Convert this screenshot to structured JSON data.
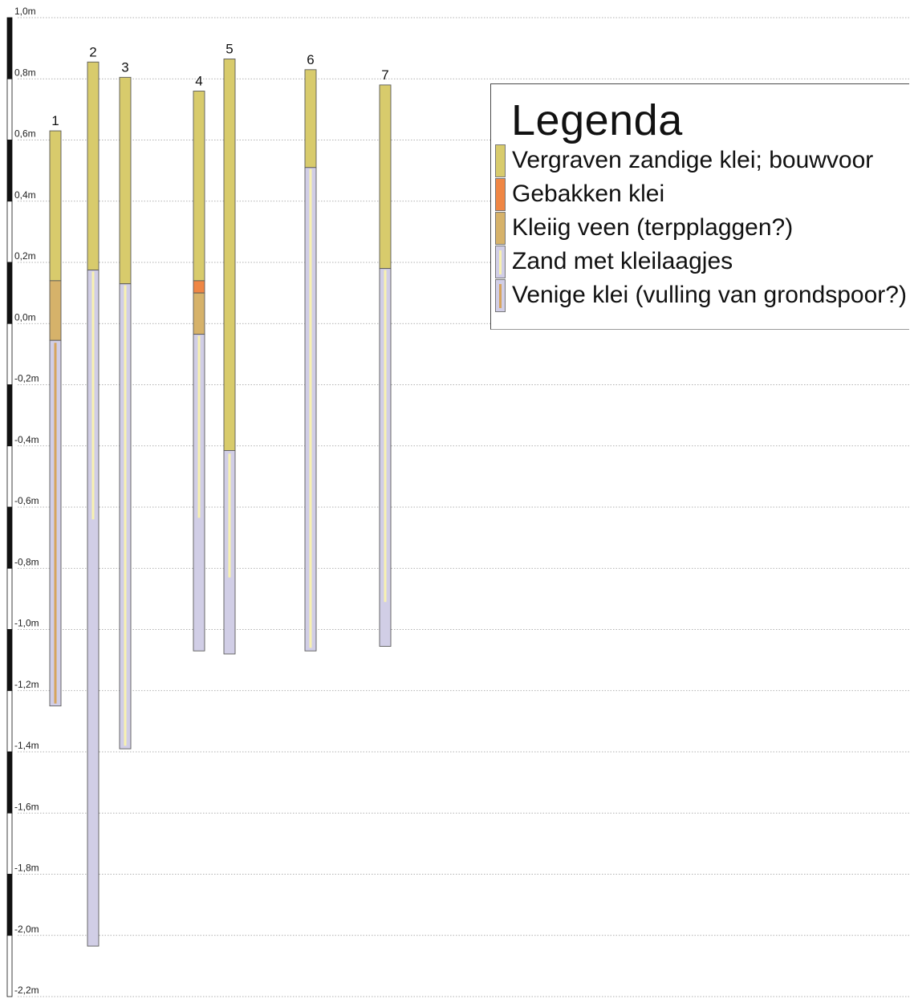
{
  "scale": {
    "top": 1.0,
    "bottom": -2.2,
    "ticks": [
      {
        "value": 1.0,
        "label": "1,0m"
      },
      {
        "value": 0.8,
        "label": "0,8m"
      },
      {
        "value": 0.6,
        "label": "0,6m"
      },
      {
        "value": 0.4,
        "label": "0,4m"
      },
      {
        "value": 0.2,
        "label": "0,2m"
      },
      {
        "value": 0.0,
        "label": "0,0m"
      },
      {
        "value": -0.2,
        "label": "-0,2m"
      },
      {
        "value": -0.4,
        "label": "-0,4m"
      },
      {
        "value": -0.6,
        "label": "-0,6m"
      },
      {
        "value": -0.8,
        "label": "-0,8m"
      },
      {
        "value": -1.0,
        "label": "-1,0m"
      },
      {
        "value": -1.2,
        "label": "-1,2m"
      },
      {
        "value": -1.4,
        "label": "-1,4m"
      },
      {
        "value": -1.6,
        "label": "-1,6m"
      },
      {
        "value": -1.8,
        "label": "-1,8m"
      },
      {
        "value": -2.0,
        "label": "-2,0m"
      },
      {
        "value": -2.2,
        "label": "-2,2m"
      }
    ]
  },
  "colors": {
    "vergraven": "#d8cb6c",
    "gebakken": "#ef8644",
    "kleiig_veen": "#d6b26a",
    "zand": "#d1cee6",
    "zand_stripe": "#f8f1b0",
    "venige_stripe": "#d6a45c",
    "gridline": "#999999",
    "axis_black": "#111111"
  },
  "borings": [
    {
      "id": "1",
      "layers": [
        {
          "type": "vergraven",
          "top": 0.63,
          "bottom": 0.14
        },
        {
          "type": "kleiig_veen",
          "top": 0.14,
          "bottom": -0.055
        },
        {
          "type": "venige_klei",
          "top": -0.055,
          "bottom": -1.25
        }
      ]
    },
    {
      "id": "2",
      "layers": [
        {
          "type": "vergraven",
          "top": 0.855,
          "bottom": 0.175
        },
        {
          "type": "zand",
          "top": 0.175,
          "bottom": -2.035,
          "stripe_top": 0.17,
          "stripe_bottom": -0.64
        }
      ]
    },
    {
      "id": "3",
      "layers": [
        {
          "type": "vergraven",
          "top": 0.805,
          "bottom": 0.13
        },
        {
          "type": "zand",
          "top": 0.13,
          "bottom": -1.39,
          "stripe_top": 0.125,
          "stripe_bottom": -1.38
        }
      ]
    },
    {
      "id": "4",
      "layers": [
        {
          "type": "vergraven",
          "top": 0.76,
          "bottom": 0.14
        },
        {
          "type": "gebakken",
          "top": 0.14,
          "bottom": 0.1
        },
        {
          "type": "kleiig_veen",
          "top": 0.1,
          "bottom": -0.035
        },
        {
          "type": "zand",
          "top": -0.035,
          "bottom": -1.07,
          "stripe_top": -0.04,
          "stripe_bottom": -0.635
        }
      ]
    },
    {
      "id": "5",
      "layers": [
        {
          "type": "vergraven",
          "top": 0.865,
          "bottom": -0.415
        },
        {
          "type": "zand",
          "top": -0.415,
          "bottom": -1.08,
          "stripe_top": -0.425,
          "stripe_bottom": -0.83
        }
      ]
    },
    {
      "id": "6",
      "layers": [
        {
          "type": "vergraven",
          "top": 0.83,
          "bottom": 0.51
        },
        {
          "type": "zand",
          "top": 0.51,
          "bottom": -1.07,
          "stripe_top": 0.505,
          "stripe_bottom": -1.06
        }
      ]
    },
    {
      "id": "7",
      "layers": [
        {
          "type": "vergraven",
          "top": 0.78,
          "bottom": 0.18
        },
        {
          "type": "zand",
          "top": 0.18,
          "bottom": -1.055,
          "stripe_top": 0.175,
          "stripe_bottom": -0.91
        }
      ]
    }
  ],
  "legend": {
    "title": "Legenda",
    "items": [
      {
        "key": "vergraven",
        "label": "Vergraven zandige klei; bouwvoor"
      },
      {
        "key": "gebakken",
        "label": "Gebakken klei"
      },
      {
        "key": "kleiig_veen",
        "label": "Kleiig veen (terpplaggen?)"
      },
      {
        "key": "zand",
        "label": "Zand met kleilaagjes"
      },
      {
        "key": "venige_klei",
        "label": "Venige klei (vulling van grondspoor?)"
      }
    ]
  }
}
